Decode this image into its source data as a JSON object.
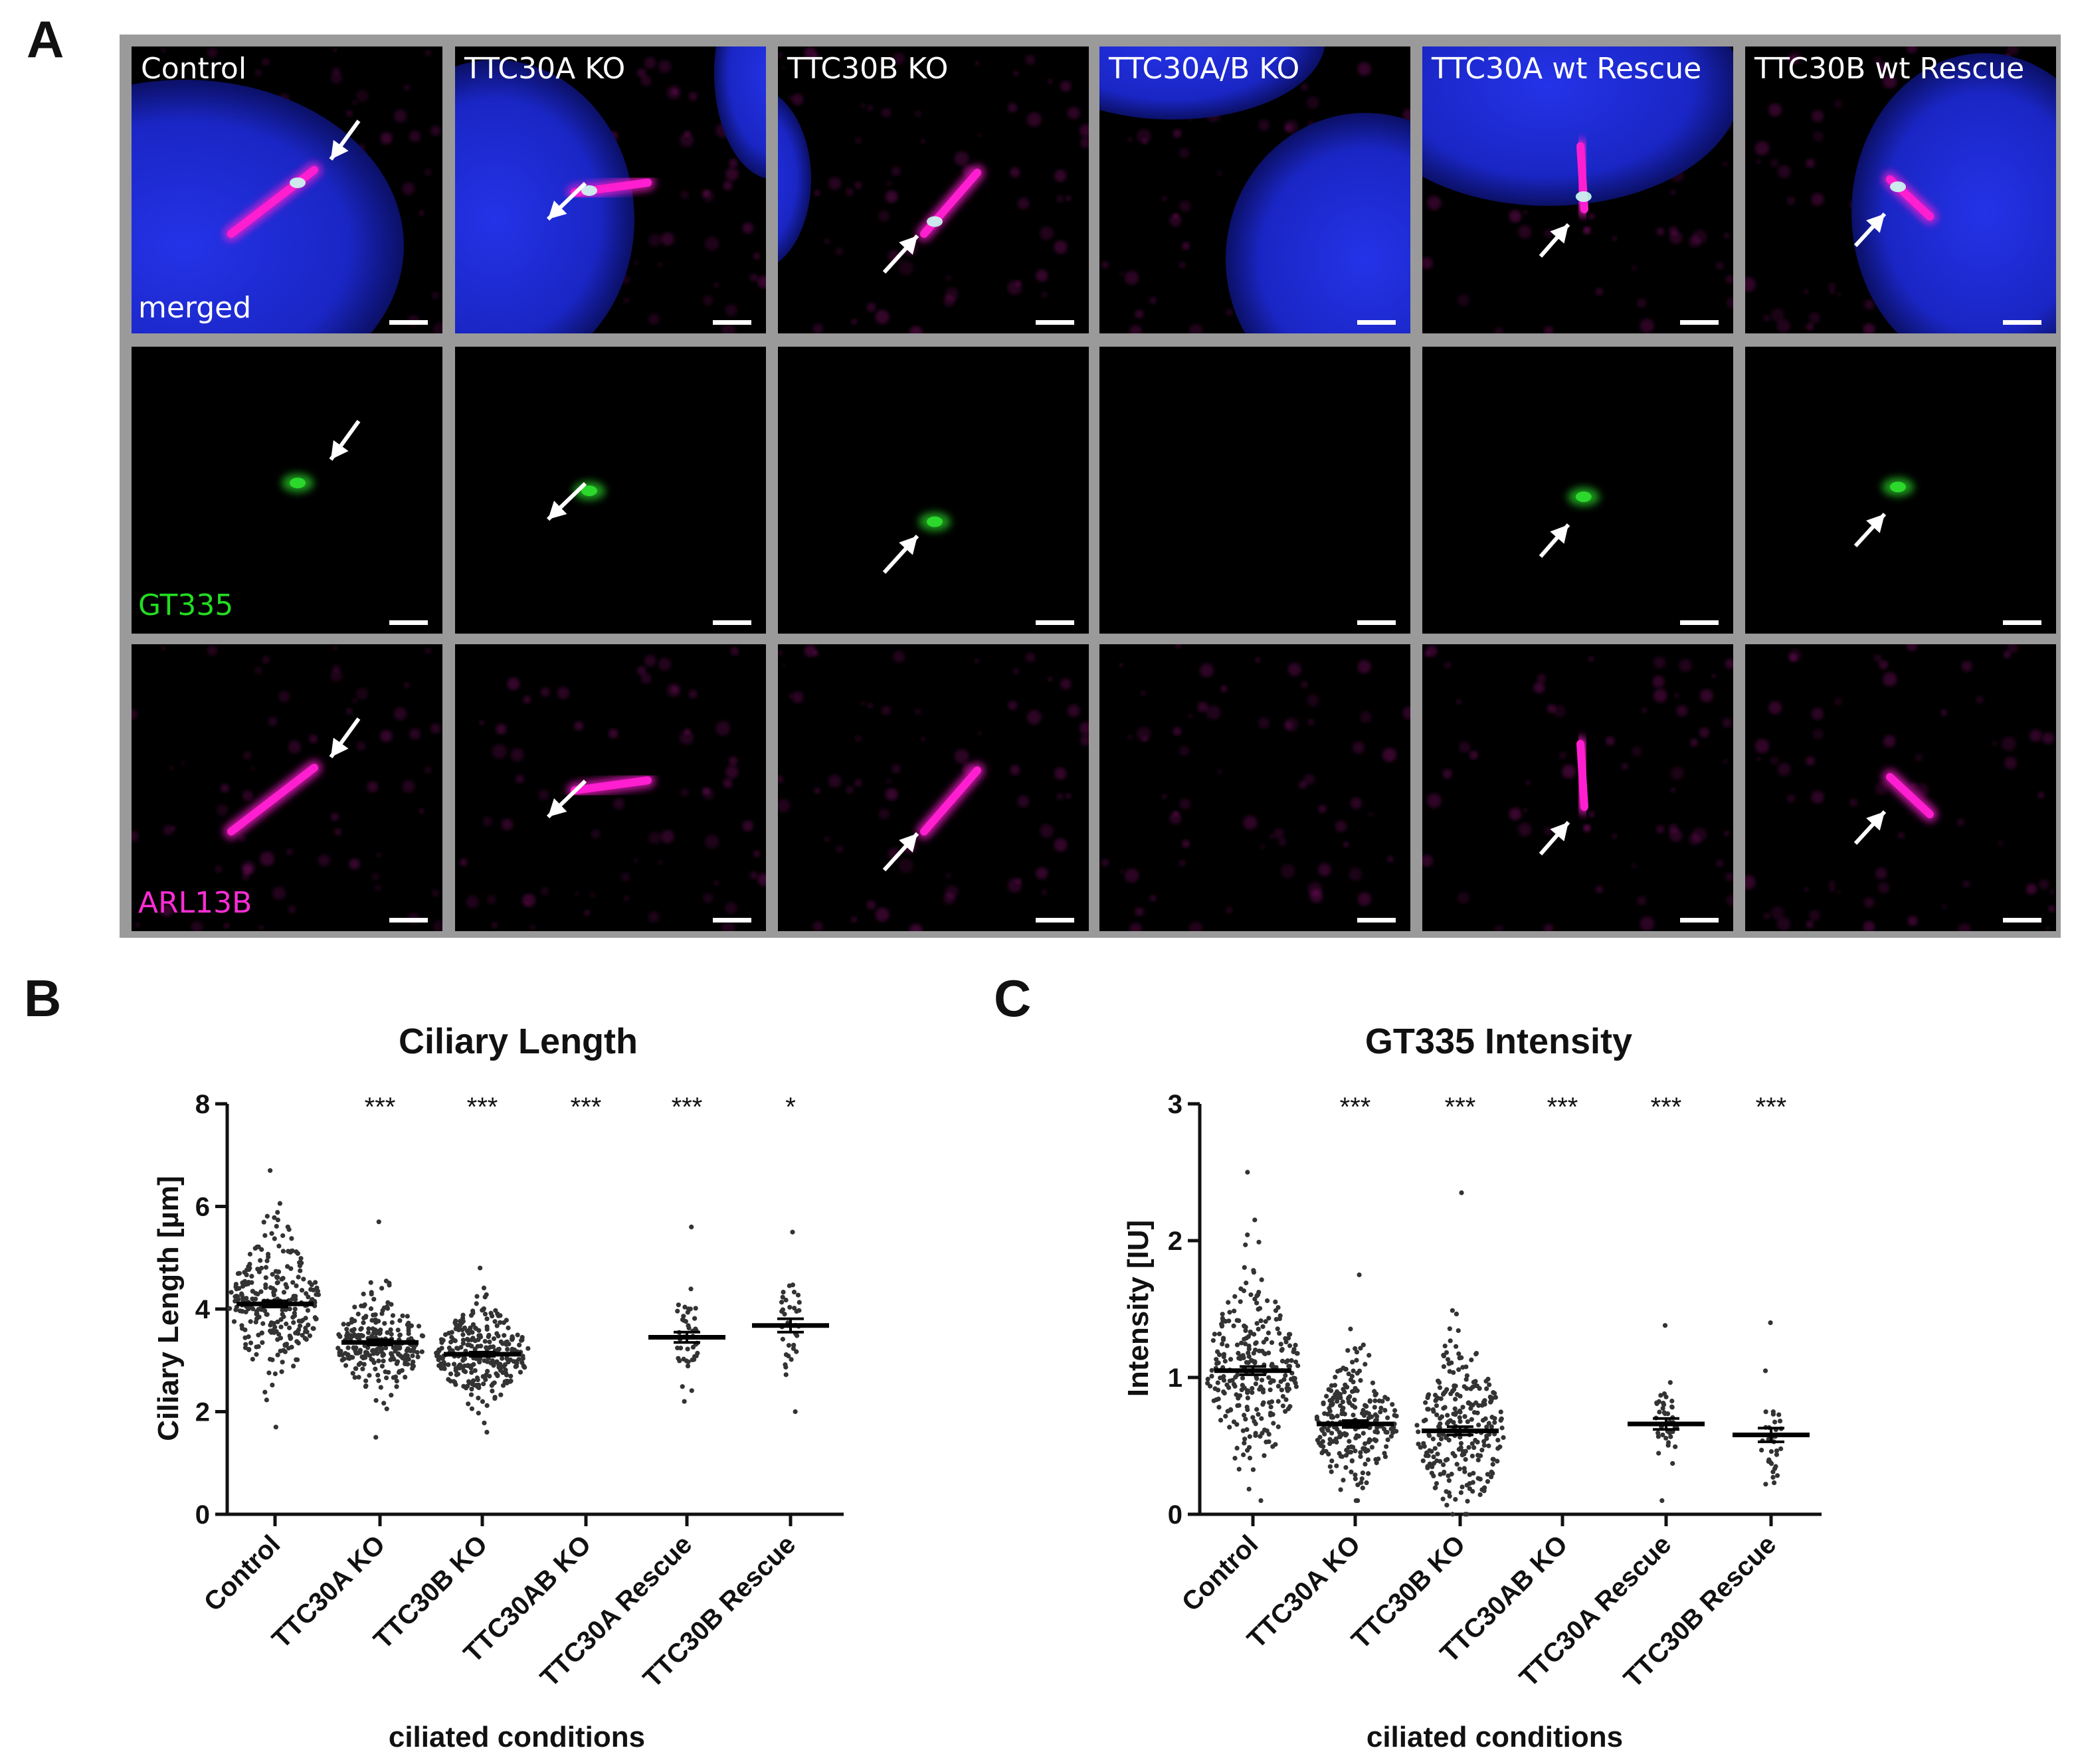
{
  "panel_a": {
    "letter": "A",
    "columns": [
      "Control",
      "TTC30A KO",
      "TTC30B KO",
      "TTC30A/B KO",
      "TTC30A wt Rescue",
      "TTC30B wt Rescue"
    ],
    "rows": [
      {
        "label": "merged",
        "label_color": "#ffffff"
      },
      {
        "label": "GT335",
        "label_color": "#22dd22"
      },
      {
        "label": "ARL13B",
        "label_color": "#ff2dd6"
      }
    ],
    "colors": {
      "nucleus": "#1a2ad8",
      "cilium": "#ff1fd0",
      "gt335": "#2bd82b",
      "frame": "#9a9a9a"
    }
  },
  "panel_b": {
    "letter": "B"
  },
  "panel_c": {
    "letter": "C"
  },
  "chart_data": [
    {
      "type": "scatter",
      "title": "Ciliary Length",
      "xlabel": "ciliated conditions",
      "ylabel": "Ciliary Length [µm]",
      "ylim": [
        0,
        8
      ],
      "yticks": [
        0,
        2,
        4,
        6,
        8
      ],
      "categories": [
        "Control",
        "TTC30A KO",
        "TTC30B KO",
        "TTC30AB KO",
        "TTC30A Rescue",
        "TTC30B Rescue"
      ],
      "means": [
        4.1,
        3.35,
        3.12,
        null,
        3.45,
        3.68
      ],
      "sem": [
        0.06,
        0.05,
        0.04,
        null,
        0.1,
        0.13
      ],
      "spread_sd": [
        0.85,
        0.62,
        0.58,
        0,
        0.55,
        0.6
      ],
      "range": [
        [
          1.7,
          6.7
        ],
        [
          1.5,
          5.7
        ],
        [
          1.6,
          4.8
        ],
        [
          0,
          0
        ],
        [
          2.2,
          5.6
        ],
        [
          2.0,
          5.5
        ]
      ],
      "n": [
        280,
        260,
        290,
        0,
        45,
        35
      ],
      "significance": [
        "",
        "***",
        "***",
        "***",
        "***",
        "*"
      ]
    },
    {
      "type": "scatter",
      "title": "GT335 Intensity",
      "xlabel": "ciliated conditions",
      "ylabel": "Intensity [IU]",
      "ylim": [
        0,
        3
      ],
      "yticks": [
        0,
        1,
        2,
        3
      ],
      "categories": [
        "Control",
        "TTC30A KO",
        "TTC30B KO",
        "TTC30AB KO",
        "TTC30A Rescue",
        "TTC30B Rescue"
      ],
      "means": [
        1.05,
        0.66,
        0.61,
        null,
        0.66,
        0.58
      ],
      "sem": [
        0.03,
        0.025,
        0.03,
        null,
        0.04,
        0.05
      ],
      "spread_sd": [
        0.42,
        0.3,
        0.38,
        0,
        0.2,
        0.2
      ],
      "range": [
        [
          0.1,
          2.5
        ],
        [
          0.1,
          1.75
        ],
        [
          0.0,
          2.35
        ],
        [
          0,
          0
        ],
        [
          0.1,
          1.38
        ],
        [
          0.22,
          1.4
        ]
      ],
      "n": [
        280,
        250,
        260,
        0,
        40,
        35
      ],
      "significance": [
        "",
        "***",
        "***",
        "***",
        "***",
        "***"
      ]
    }
  ]
}
